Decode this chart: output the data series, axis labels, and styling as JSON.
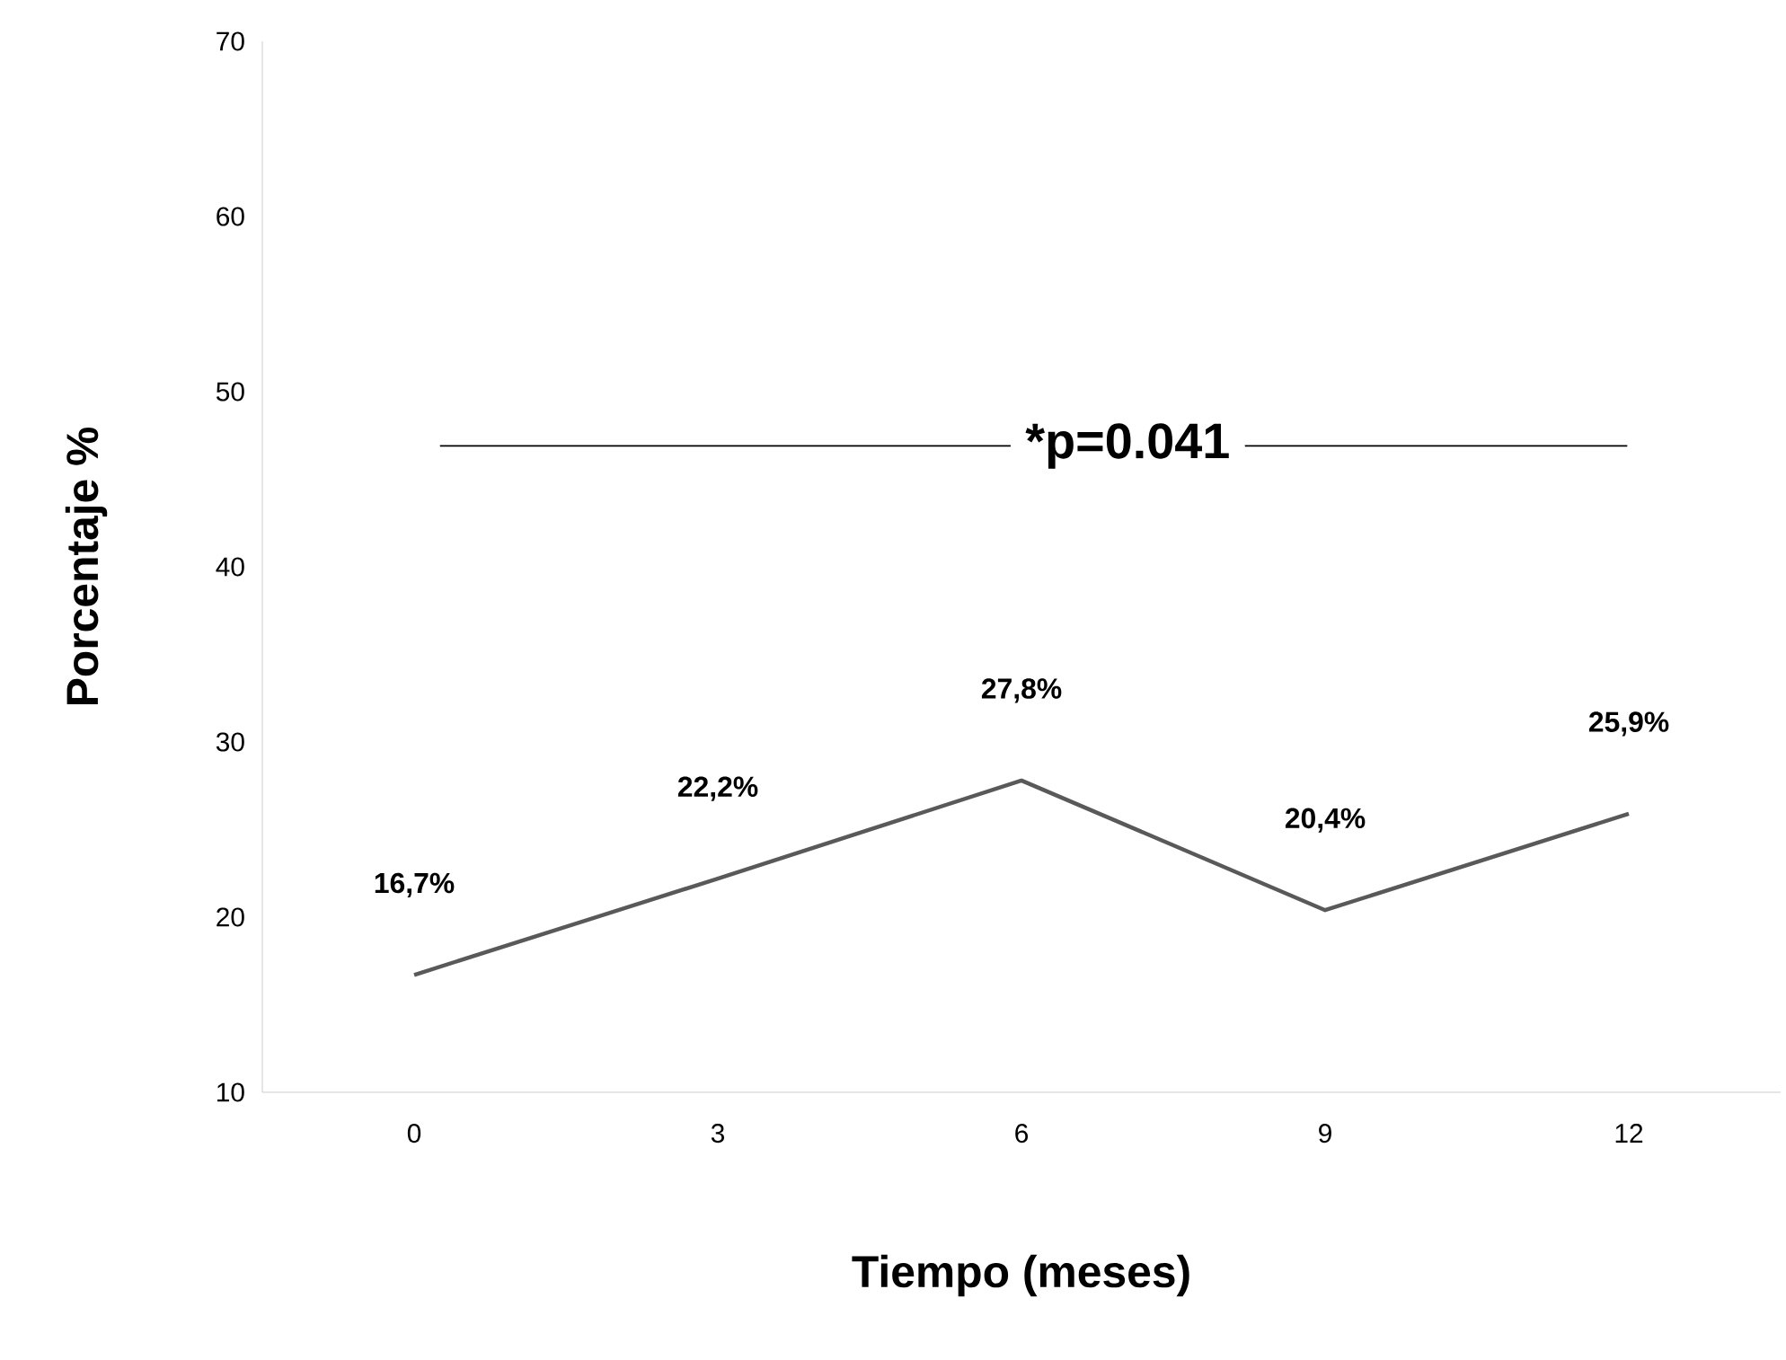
{
  "chart_data": {
    "type": "line",
    "xlabel": "Tiempo (meses)",
    "ylabel": "Porcentaje   %",
    "categories": [
      "0",
      "3",
      "6",
      "9",
      "12"
    ],
    "series": [
      {
        "color": "#595959",
        "values": [
          16.7,
          22.2,
          27.8,
          20.4,
          25.9
        ]
      }
    ],
    "value_labels": [
      "16,7%",
      "22,2%",
      "27,8%",
      "20,4%",
      "25,9%"
    ],
    "ylim": [
      10,
      70
    ],
    "yticks": [
      10,
      20,
      30,
      40,
      50,
      60,
      70
    ],
    "annotations": [
      "*p=0.041"
    ],
    "marker": "none",
    "line_style": "solid"
  }
}
